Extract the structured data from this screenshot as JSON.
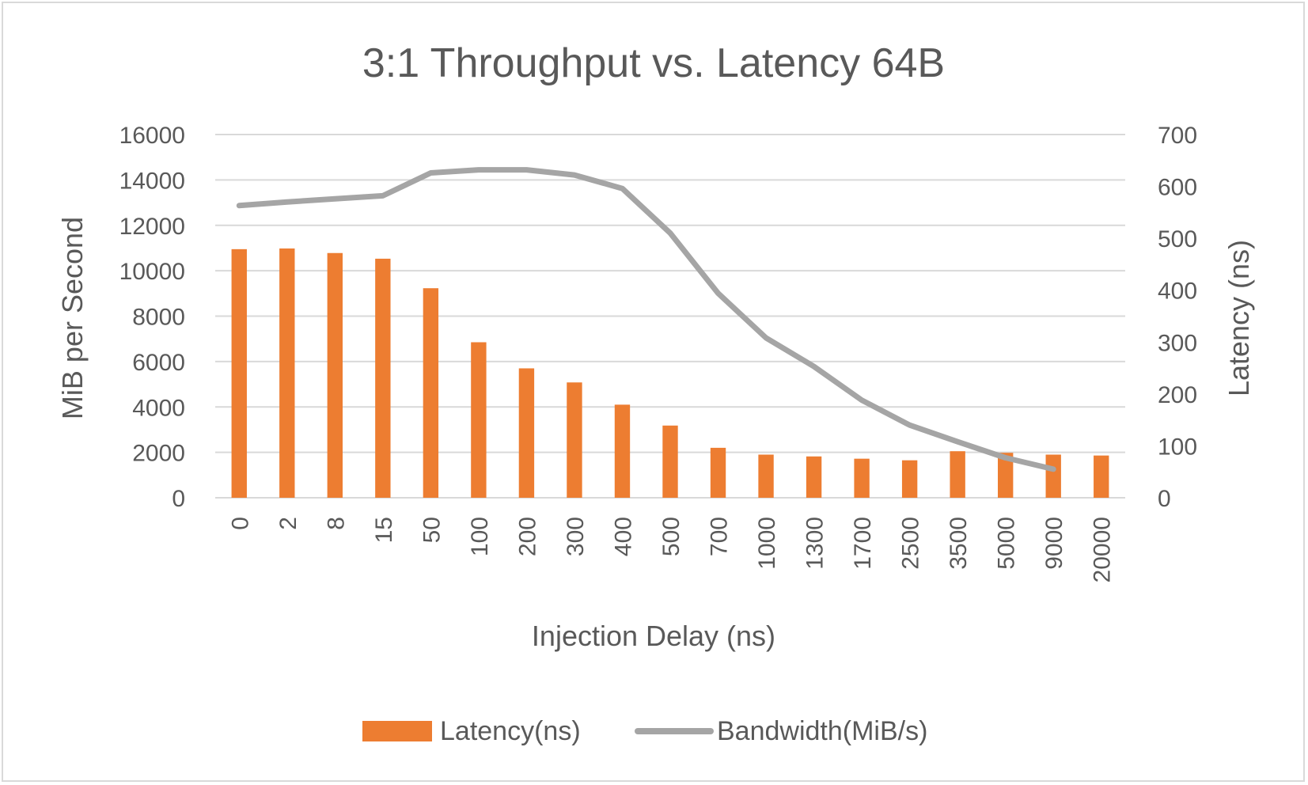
{
  "chart_data": {
    "type": "bar+line",
    "title": "3:1 Throughput vs. Latency 64B",
    "xlabel": "Injection Delay (ns)",
    "ylabel_left": "MiB per Second",
    "ylabel_right": "Latency (ns)",
    "categories": [
      "0",
      "2",
      "8",
      "15",
      "50",
      "100",
      "200",
      "300",
      "400",
      "500",
      "700",
      "1000",
      "1300",
      "1700",
      "2500",
      "3500",
      "5000",
      "9000",
      "20000"
    ],
    "ylim_left": [
      0,
      16000
    ],
    "yticks_left": [
      0,
      2000,
      4000,
      6000,
      8000,
      10000,
      12000,
      14000,
      16000
    ],
    "ylim_right": [
      0,
      700
    ],
    "yticks_right": [
      0,
      100,
      200,
      300,
      400,
      500,
      600,
      700
    ],
    "grid": true,
    "legend_position": "bottom",
    "series": [
      {
        "name": "Latency(ns)",
        "type": "bar",
        "axis": "left",
        "color": "#ed7d31",
        "values": [
          10950,
          10980,
          10780,
          10530,
          9230,
          6850,
          5700,
          5080,
          4100,
          3180,
          2200,
          1900,
          1820,
          1720,
          1650,
          2050,
          1980,
          1900,
          1860
        ]
      },
      {
        "name": "Bandwidth(MiB/s)",
        "type": "line",
        "axis": "right",
        "color": "#a5a5a5",
        "values": [
          563,
          570,
          576,
          582,
          626,
          632,
          632,
          622,
          596,
          510,
          394,
          308,
          253,
          188,
          140,
          108,
          77,
          55,
          null
        ]
      }
    ]
  }
}
